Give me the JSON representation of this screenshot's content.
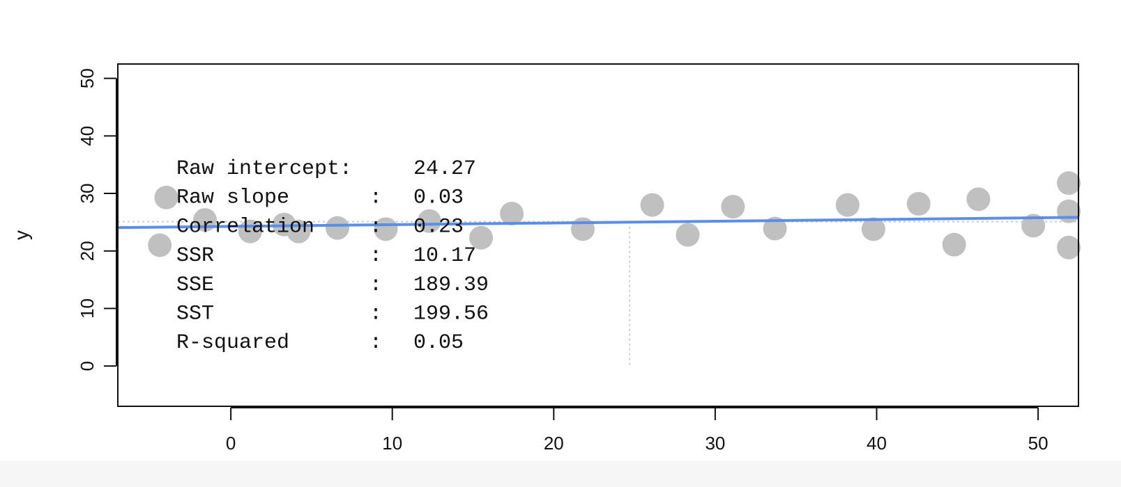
{
  "chart_data": {
    "type": "scatter",
    "title": "",
    "xlabel": "",
    "ylabel": "y",
    "xlim": [
      -7,
      52.5
    ],
    "ylim": [
      -7,
      52.5
    ],
    "xticks": [
      0,
      10,
      20,
      30,
      40,
      50
    ],
    "yticks": [
      0,
      10,
      20,
      30,
      40,
      50
    ],
    "grid": false,
    "points": [
      {
        "x": -4.4,
        "y": 21.0
      },
      {
        "x": -4.0,
        "y": 29.3
      },
      {
        "x": -1.6,
        "y": 25.4
      },
      {
        "x": 1.2,
        "y": 23.4
      },
      {
        "x": 3.3,
        "y": 24.6
      },
      {
        "x": 4.2,
        "y": 23.4
      },
      {
        "x": 6.6,
        "y": 24.0
      },
      {
        "x": 9.6,
        "y": 23.8
      },
      {
        "x": 12.3,
        "y": 25.2
      },
      {
        "x": 15.5,
        "y": 22.3
      },
      {
        "x": 17.4,
        "y": 26.5
      },
      {
        "x": 21.8,
        "y": 23.8
      },
      {
        "x": 26.1,
        "y": 28.0
      },
      {
        "x": 28.3,
        "y": 22.8
      },
      {
        "x": 31.1,
        "y": 27.7
      },
      {
        "x": 33.7,
        "y": 23.9
      },
      {
        "x": 38.2,
        "y": 28.0
      },
      {
        "x": 39.8,
        "y": 23.8
      },
      {
        "x": 42.6,
        "y": 28.2
      },
      {
        "x": 44.8,
        "y": 21.1
      },
      {
        "x": 46.3,
        "y": 29.0
      },
      {
        "x": 49.7,
        "y": 24.4
      },
      {
        "x": 51.9,
        "y": 31.8
      },
      {
        "x": 51.9,
        "y": 26.9
      },
      {
        "x": 51.9,
        "y": 20.6
      }
    ],
    "fit_line": {
      "intercept": 24.27,
      "slope": 0.03,
      "color": "#5b8ee6"
    },
    "mean_x": 24.7,
    "mean_y": 25.1,
    "point_color": "#c0c0c0",
    "guide_color": "#cccccc",
    "annotation": [
      {
        "label": "Raw intercept:",
        "sep": "",
        "value": "24.27"
      },
      {
        "label": "Raw slope",
        "sep": ":",
        "value": "0.03"
      },
      {
        "label": "Correlation",
        "sep": ":",
        "value": "0.23"
      },
      {
        "label": "SSR",
        "sep": ":",
        "value": "10.17"
      },
      {
        "label": "SSE",
        "sep": ":",
        "value": "189.39"
      },
      {
        "label": "SST",
        "sep": ":",
        "value": "199.56"
      },
      {
        "label": "R-squared",
        "sep": ":",
        "value": "0.05"
      }
    ]
  }
}
